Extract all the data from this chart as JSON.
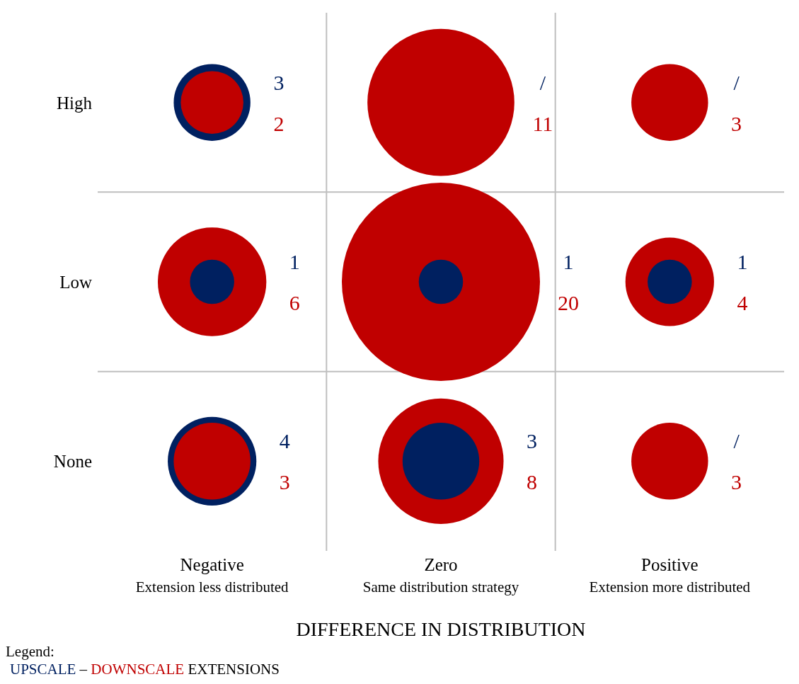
{
  "chart_data": {
    "type": "other",
    "categories": [
      "Negative\nExtension less distributed",
      "Zero\nSame distribution strategy",
      "Positive\nExtension more distributed"
    ],
    "y_categories": [
      "High",
      "Low",
      "None"
    ],
    "xlabel": "DIFFERENCE IN DISTRIBUTION",
    "legend_title": "Legend:",
    "series": [
      {
        "name": "UPSCALE",
        "color": "#002060",
        "values": [
          3,
          null,
          null
        ],
        "value_labels": [
          "3",
          "/",
          "/"
        ]
      },
      {
        "name": "DOWNSCALE",
        "color": "#c00000",
        "values": [
          2,
          11,
          3
        ],
        "value_labels": [
          "2",
          "11",
          "3"
        ]
      },
      {
        "color": "#002060",
        "values": [
          1,
          1,
          1
        ],
        "value_labels": [
          "1",
          "1",
          "1"
        ]
      },
      {
        "color": "#c00000",
        "values": [
          6,
          20,
          4
        ],
        "value_labels": [
          "6",
          "20",
          "4"
        ]
      },
      {
        "color": "#002060",
        "values": [
          4,
          3,
          null
        ],
        "value_labels": [
          "4",
          "3",
          "/"
        ]
      },
      {
        "color": "#c00000",
        "values": [
          3,
          8,
          3
        ],
        "value_labels": [
          "3",
          "8",
          "3"
        ]
      }
    ],
    "annotations": [
      "–",
      "EXTENSIONS"
    ]
  }
}
